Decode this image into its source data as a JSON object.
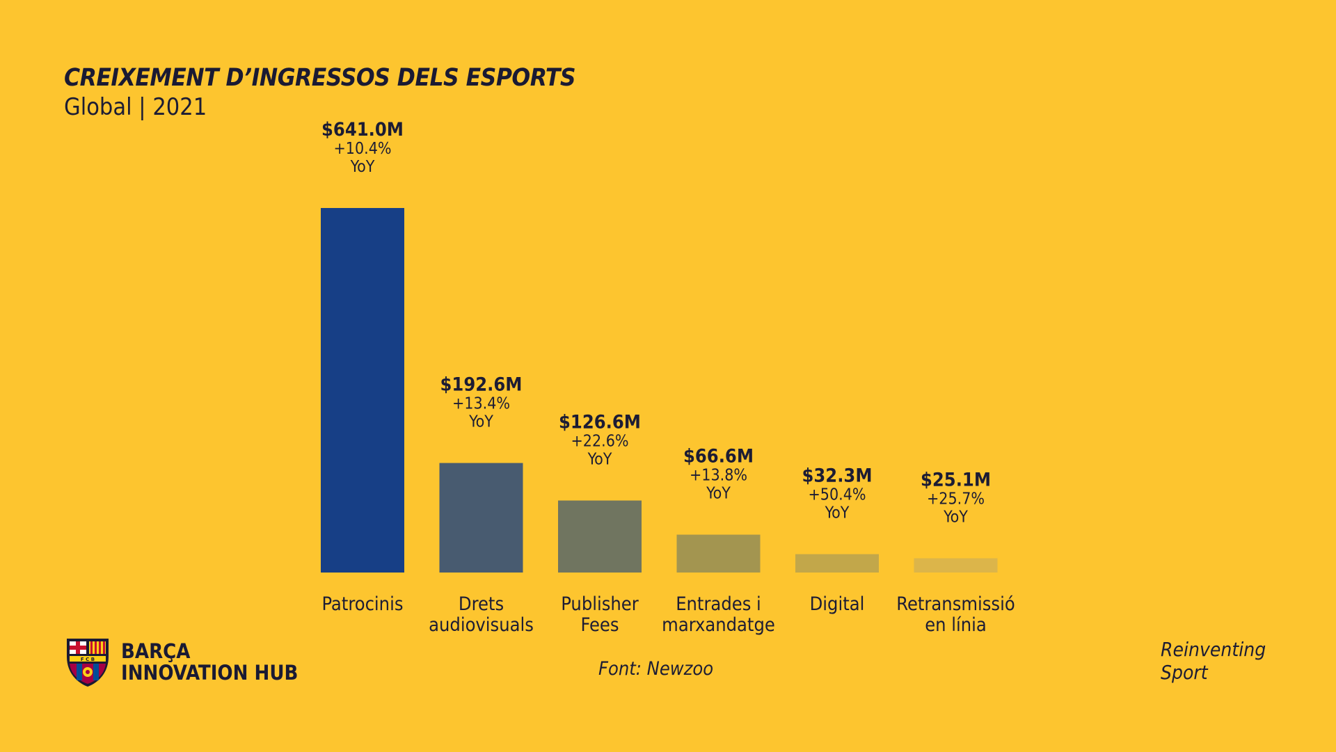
{
  "header": {
    "title": "CREIXEMENT D’INGRESSOS DELS ESPORTS",
    "subtitle": "Global | 2021"
  },
  "chart_data": {
    "type": "bar",
    "categories": [
      [
        "Patrocinis"
      ],
      [
        "Drets",
        "audiovisuals"
      ],
      [
        "Publisher",
        "Fees"
      ],
      [
        "Entrades i",
        "marxandatge"
      ],
      [
        "Digital"
      ],
      [
        "Retransmissió",
        "en línia"
      ]
    ],
    "values": [
      641.0,
      192.6,
      126.6,
      66.6,
      32.3,
      25.1
    ],
    "value_labels": [
      "$641.0M",
      "$192.6M",
      "$126.6M",
      "$66.6M",
      "$32.3M",
      "$25.1M"
    ],
    "growth_labels": [
      "+10.4%",
      "+13.4%",
      "+22.6%",
      "+13.8%",
      "+50.4%",
      "+25.7%"
    ],
    "growth_unit": "YoY",
    "bar_colors": [
      "#173f86",
      "#485b70",
      "#707560",
      "#a39550",
      "#c2a74a",
      "#dcb54a"
    ],
    "ylim": [
      0,
      641.0
    ],
    "grid": false,
    "legend": "none"
  },
  "source": "Font: Newzoo",
  "brand": {
    "line1": "BARÇA",
    "line2": "INNOVATION HUB",
    "logo_icon": "fcb-crest-icon"
  },
  "tagline": {
    "line1": "Reinventing",
    "line2": "Sport"
  }
}
